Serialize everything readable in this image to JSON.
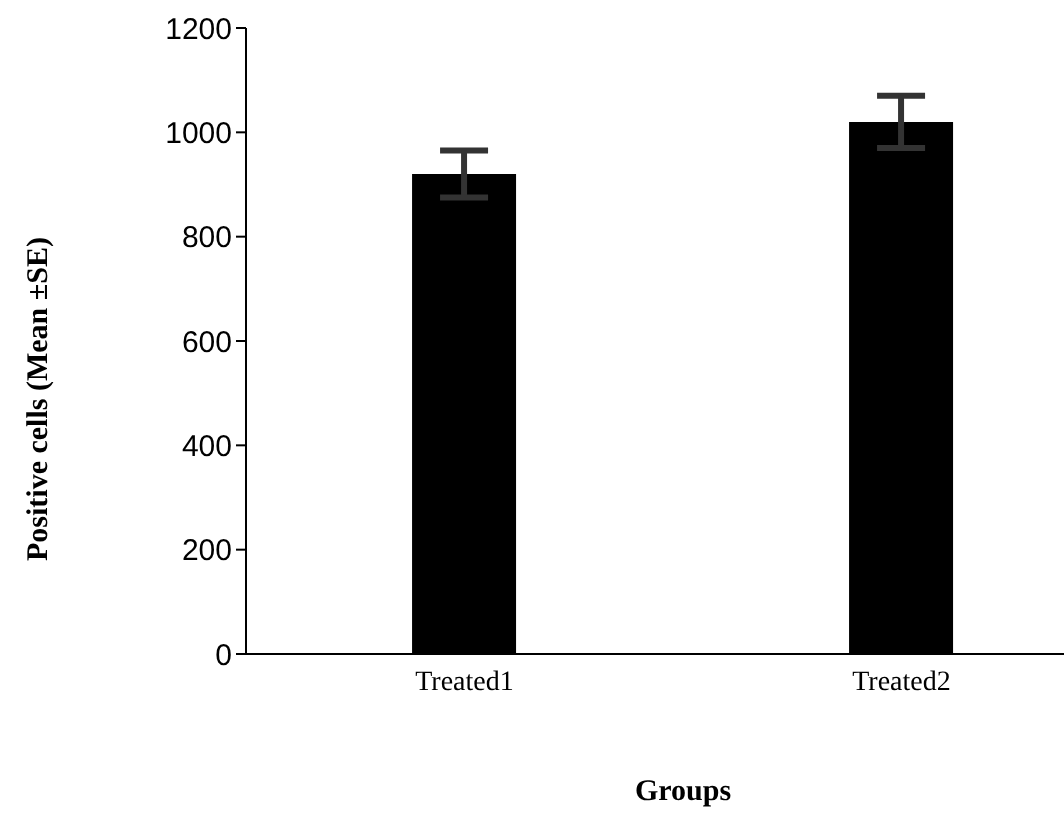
{
  "chart_data": {
    "type": "bar",
    "xlabel": "Groups",
    "ylabel": "Positive cells (Mean ±SE)",
    "categories": [
      "Treated1",
      "Treated2"
    ],
    "series": [
      {
        "color": "#000000",
        "values": [
          920,
          1020
        ],
        "errors": [
          45,
          50
        ]
      }
    ],
    "ylim": [
      0,
      1200
    ],
    "yticks": [
      0,
      200,
      400,
      600,
      800,
      1000,
      1200
    ],
    "grid": false,
    "legend": false
  }
}
